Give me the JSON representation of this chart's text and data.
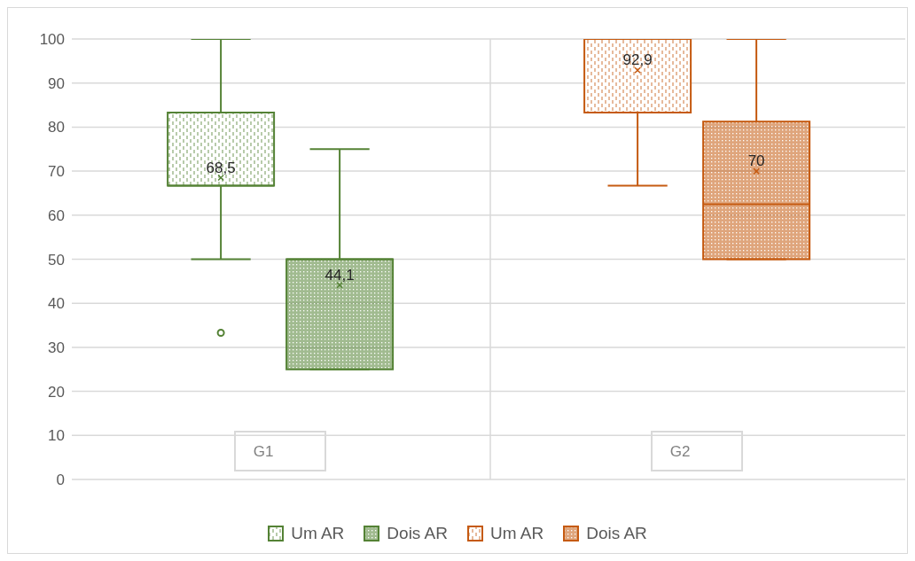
{
  "chart_data": {
    "type": "box",
    "categories": [
      "G1",
      "G2"
    ],
    "ylim": [
      0,
      100
    ],
    "yticks": [
      0,
      10,
      20,
      30,
      40,
      50,
      60,
      70,
      80,
      90,
      100
    ],
    "grid": true,
    "legend": "bottom",
    "series": [
      {
        "name": "Um AR",
        "color": "#548235",
        "boxes": [
          {
            "low": 50,
            "q1": 66.7,
            "median": 66.7,
            "q3": 83.3,
            "high": 100,
            "mean": 68.5,
            "outliers": [
              33.3
            ]
          },
          null
        ],
        "value_labels": [
          "68,5",
          null
        ]
      },
      {
        "name": "Dois AR",
        "color": "#548235",
        "boxes": [
          {
            "low": 25,
            "q1": 25,
            "median": 50,
            "q3": 50,
            "high": 75,
            "mean": 44.1
          },
          null
        ],
        "value_labels": [
          "44,1",
          null
        ]
      },
      {
        "name": "Um AR",
        "color": "#c55a11",
        "boxes": [
          null,
          {
            "low": 66.7,
            "q1": 83.3,
            "median": 100,
            "q3": 100,
            "high": 100,
            "mean": 92.9
          }
        ],
        "value_labels": [
          null,
          "92,9"
        ]
      },
      {
        "name": "Dois AR",
        "color": "#c55a11",
        "boxes": [
          null,
          {
            "low": 50,
            "q1": 50,
            "median": 62.5,
            "q3": 81.25,
            "high": 100,
            "mean": 70
          }
        ],
        "value_labels": [
          null,
          "70"
        ]
      }
    ]
  }
}
